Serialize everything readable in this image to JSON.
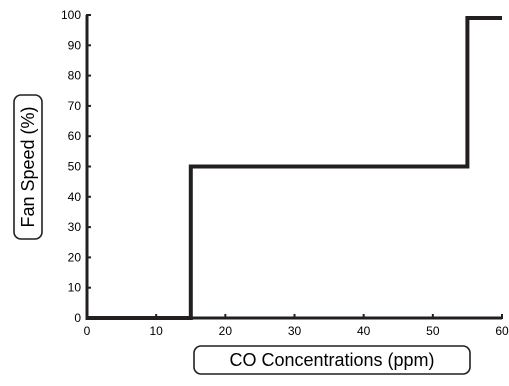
{
  "chart_data": {
    "type": "line",
    "title": "",
    "xlabel": "CO Concentrations (ppm)",
    "ylabel": "Fan Speed (%)",
    "xlim": [
      0,
      60
    ],
    "ylim": [
      0,
      100
    ],
    "x_ticks": [
      "0",
      "10",
      "20",
      "30",
      "40",
      "50",
      "60"
    ],
    "y_ticks": [
      "0",
      "10",
      "20",
      "30",
      "40",
      "50",
      "60",
      "70",
      "80",
      "90",
      "100"
    ],
    "grid": false,
    "legend": "none",
    "series": [
      {
        "x": [
          0,
          15,
          15,
          55,
          55,
          60
        ],
        "y": [
          0,
          0,
          50,
          50,
          99,
          99
        ],
        "color": "#231f20"
      }
    ]
  }
}
